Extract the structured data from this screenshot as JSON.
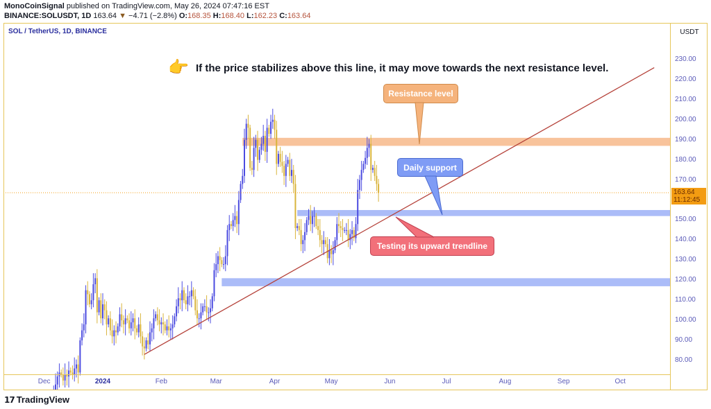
{
  "header": {
    "author": "MonoCoinSignal",
    "published": "published on TradingView.com, May 26, 2024 07:47:16 EST",
    "symbol": "BINANCE:SOLUSDT, 1D",
    "last": "163.64",
    "arrow": "▼",
    "change": "−4.71 (−2.8%)",
    "o_label": "O:",
    "o": "168.35",
    "h_label": "H:",
    "h": "168.40",
    "l_label": "L:",
    "l": "162.23",
    "c_label": "C:",
    "c": "163.64"
  },
  "chart_title": "SOL / TetherUS, 1D, BINANCE",
  "currency": "USDT",
  "current_price": {
    "value": "163.64",
    "countdown": "11:12:45"
  },
  "annotation": "If the price stabilizes above this line, it may move towards the next resistance level.",
  "callouts": {
    "resistance": "Resistance level",
    "support": "Daily support",
    "trendline": "Testing its upward trendline"
  },
  "footer": {
    "logo": "TradingView"
  },
  "colors": {
    "up": "#4b4be0",
    "down": "#d9b43c",
    "resistance": "#f7b98a",
    "support": "#8fa6f5",
    "trendline": "#b5423a",
    "frame": "#e6c65a",
    "price_tag": "#f39c12"
  },
  "chart_data": {
    "type": "candlestick",
    "title": "SOL / TetherUS, 1D, BINANCE",
    "start_date": "2023-12-05",
    "close": [
      62,
      64,
      68,
      72,
      74,
      73,
      70,
      73,
      72,
      75,
      74,
      73,
      76,
      78,
      74,
      90,
      95,
      98,
      115,
      113,
      108,
      110,
      118,
      121,
      104,
      110,
      101,
      108,
      105,
      98,
      101,
      95,
      92,
      95,
      94,
      97,
      103,
      100,
      98,
      101,
      100,
      96,
      99,
      101,
      96,
      94,
      98,
      92,
      87,
      86,
      90,
      88,
      94,
      96,
      101,
      103,
      100,
      98,
      99,
      98,
      95,
      97,
      95,
      96,
      98,
      102,
      107,
      111,
      110,
      115,
      110,
      108,
      112,
      112,
      115,
      112,
      105,
      101,
      101,
      104,
      107,
      107,
      104,
      104,
      106,
      112,
      125,
      128,
      132,
      130,
      128,
      128,
      132,
      145,
      148,
      147,
      150,
      152,
      148,
      160,
      168,
      172,
      190,
      198,
      196,
      176,
      175,
      186,
      190,
      180,
      185,
      188,
      192,
      184,
      196,
      193,
      199,
      200,
      195,
      178,
      183,
      179,
      177,
      172,
      178,
      180,
      172,
      175,
      168,
      146,
      147,
      145,
      138,
      140,
      144,
      150,
      152,
      148,
      152,
      152,
      147,
      145,
      140,
      138,
      140,
      138,
      131,
      135,
      133,
      135,
      140,
      148,
      147,
      146,
      145,
      145,
      145,
      140,
      143,
      145,
      141,
      148,
      165,
      170,
      175,
      178,
      181,
      186,
      188,
      175,
      176,
      172,
      168,
      163.64
    ],
    "y_ticks": [
      "80.00",
      "90.00",
      "100.00",
      "110.00",
      "120.00",
      "130.00",
      "140.00",
      "150.00",
      "170.00",
      "180.00",
      "190.00",
      "200.00",
      "210.00",
      "220.00",
      "230.00"
    ],
    "y_tick_values": [
      80,
      90,
      100,
      110,
      120,
      130,
      140,
      150,
      170,
      180,
      190,
      200,
      210,
      220,
      230
    ],
    "x_ticks": [
      {
        "label": "Dec",
        "date": "2023-12-01"
      },
      {
        "label": "2024",
        "date": "2024-01-01",
        "bold": true
      },
      {
        "label": "Feb",
        "date": "2024-02-01"
      },
      {
        "label": "Mar",
        "date": "2024-03-01"
      },
      {
        "label": "Apr",
        "date": "2024-04-01"
      },
      {
        "label": "May",
        "date": "2024-05-01"
      },
      {
        "label": "Jun",
        "date": "2024-06-01"
      },
      {
        "label": "Jul",
        "date": "2024-07-01"
      },
      {
        "label": "Aug",
        "date": "2024-08-01"
      },
      {
        "label": "Sep",
        "date": "2024-09-01"
      },
      {
        "label": "Oct",
        "date": "2024-10-01"
      }
    ],
    "zones": [
      {
        "name": "resistance",
        "from": 187,
        "to": 191,
        "start": "2024-03-15"
      },
      {
        "name": "daily-support",
        "from": 152,
        "to": 155,
        "start": "2024-04-13"
      },
      {
        "name": "lower-support",
        "from": 117,
        "to": 121,
        "start": "2024-03-04"
      }
    ],
    "trendline": {
      "from": {
        "date": "2024-01-23",
        "price": 83
      },
      "to": {
        "date": "2024-10-19",
        "price": 226
      }
    }
  }
}
